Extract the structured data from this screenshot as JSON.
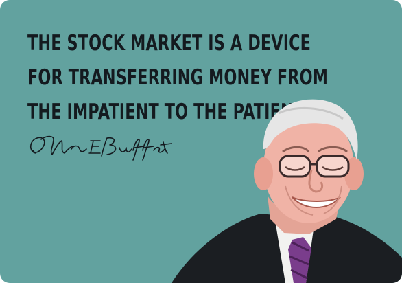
{
  "quote": {
    "lines": [
      "THE STOCK MARKET IS A DEVICE",
      "FOR TRANSFERRING MONEY FROM",
      "THE IMPATIENT TO THE PATIENT"
    ]
  },
  "signature": {
    "text": "Warren E Buffett",
    "icon": "handwritten-signature"
  },
  "portrait": {
    "icon": "person-portrait"
  },
  "colors": {
    "background": "#62a29f",
    "text": "#141a1f",
    "suit": "#1b1e22",
    "tie": "#7a3d8c"
  }
}
